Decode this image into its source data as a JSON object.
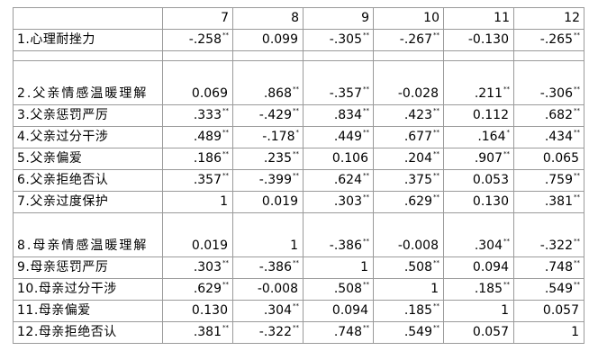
{
  "table": {
    "columns": [
      "7",
      "8",
      "9",
      "10",
      "11",
      "12"
    ],
    "rows": [
      {
        "label": "1.心理耐挫力",
        "cells": [
          {
            "v": "-.258",
            "s": "**"
          },
          {
            "v": "0.099",
            "s": ""
          },
          {
            "v": "-.305",
            "s": "**"
          },
          {
            "v": "-.267",
            "s": "**"
          },
          {
            "v": "-0.130",
            "s": ""
          },
          {
            "v": "-.265",
            "s": "**"
          }
        ]
      },
      {
        "label": "2.父亲情感温暖理解",
        "cells": [
          {
            "v": "0.069",
            "s": ""
          },
          {
            "v": ".868",
            "s": "**"
          },
          {
            "v": "-.357",
            "s": "**"
          },
          {
            "v": "-0.028",
            "s": ""
          },
          {
            "v": ".211",
            "s": "**"
          },
          {
            "v": "-.306",
            "s": "**"
          }
        ]
      },
      {
        "label": "3.父亲惩罚严厉",
        "cells": [
          {
            "v": ".333",
            "s": "**"
          },
          {
            "v": "-.429",
            "s": "**"
          },
          {
            "v": ".834",
            "s": "**"
          },
          {
            "v": ".423",
            "s": "**"
          },
          {
            "v": "0.112",
            "s": ""
          },
          {
            "v": ".682",
            "s": "**"
          }
        ]
      },
      {
        "label": "4.父亲过分干涉",
        "cells": [
          {
            "v": ".489",
            "s": "**"
          },
          {
            "v": "-.178",
            "s": "*"
          },
          {
            "v": ".449",
            "s": "**"
          },
          {
            "v": ".677",
            "s": "**"
          },
          {
            "v": ".164",
            "s": "*"
          },
          {
            "v": ".434",
            "s": "**"
          }
        ]
      },
      {
        "label": "5.父亲偏爱",
        "cells": [
          {
            "v": ".186",
            "s": "**"
          },
          {
            "v": ".235",
            "s": "**"
          },
          {
            "v": "0.106",
            "s": ""
          },
          {
            "v": ".204",
            "s": "**"
          },
          {
            "v": ".907",
            "s": "**"
          },
          {
            "v": "0.065",
            "s": ""
          }
        ]
      },
      {
        "label": "6.父亲拒绝否认",
        "cells": [
          {
            "v": ".357",
            "s": "**"
          },
          {
            "v": "-.399",
            "s": "**"
          },
          {
            "v": ".624",
            "s": "**"
          },
          {
            "v": ".375",
            "s": "**"
          },
          {
            "v": "0.053",
            "s": ""
          },
          {
            "v": ".759",
            "s": "**"
          }
        ]
      },
      {
        "label": "7.父亲过度保护",
        "cells": [
          {
            "v": "1",
            "s": ""
          },
          {
            "v": "0.019",
            "s": ""
          },
          {
            "v": ".303",
            "s": "**"
          },
          {
            "v": ".629",
            "s": "**"
          },
          {
            "v": "0.130",
            "s": ""
          },
          {
            "v": ".381",
            "s": "**"
          }
        ]
      },
      {
        "label": "8.母亲情感温暖理解",
        "cells": [
          {
            "v": "0.019",
            "s": ""
          },
          {
            "v": "1",
            "s": ""
          },
          {
            "v": "-.386",
            "s": "**"
          },
          {
            "v": "-0.008",
            "s": ""
          },
          {
            "v": ".304",
            "s": "**"
          },
          {
            "v": "-.322",
            "s": "**"
          }
        ]
      },
      {
        "label": "9.母亲惩罚严厉",
        "cells": [
          {
            "v": ".303",
            "s": "**"
          },
          {
            "v": "-.386",
            "s": "**"
          },
          {
            "v": "1",
            "s": ""
          },
          {
            "v": ".508",
            "s": "**"
          },
          {
            "v": "0.094",
            "s": ""
          },
          {
            "v": ".748",
            "s": "**"
          }
        ]
      },
      {
        "label": "10.母亲过分干涉",
        "cells": [
          {
            "v": ".629",
            "s": "**"
          },
          {
            "v": "-0.008",
            "s": ""
          },
          {
            "v": ".508",
            "s": "**"
          },
          {
            "v": "1",
            "s": ""
          },
          {
            "v": ".185",
            "s": "**"
          },
          {
            "v": ".549",
            "s": "**"
          }
        ]
      },
      {
        "label": "11.母亲偏爱",
        "cells": [
          {
            "v": "0.130",
            "s": ""
          },
          {
            "v": ".304",
            "s": "**"
          },
          {
            "v": "0.094",
            "s": ""
          },
          {
            "v": ".185",
            "s": "**"
          },
          {
            "v": "1",
            "s": ""
          },
          {
            "v": "0.057",
            "s": ""
          }
        ]
      },
      {
        "label": "12.母亲拒绝否认",
        "cells": [
          {
            "v": ".381",
            "s": "**"
          },
          {
            "v": "-.322",
            "s": "**"
          },
          {
            "v": ".748",
            "s": "**"
          },
          {
            "v": ".549",
            "s": "**"
          },
          {
            "v": "0.057",
            "s": ""
          },
          {
            "v": "1",
            "s": ""
          }
        ]
      }
    ]
  }
}
